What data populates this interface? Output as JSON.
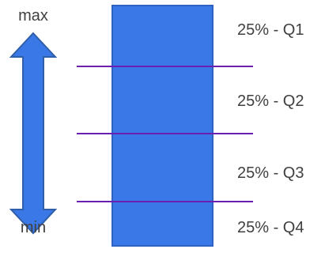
{
  "range_labels": {
    "top": "max",
    "bottom": "min"
  },
  "quartiles": [
    {
      "label": "25% - Q1"
    },
    {
      "label": "25% - Q2"
    },
    {
      "label": "25% - Q3"
    },
    {
      "label": "25% - Q4"
    }
  ],
  "colors": {
    "box_fill": "#3b78e7",
    "box_stroke": "#2f63c2",
    "arrow_fill": "#3b78e7",
    "arrow_stroke": "#2f5fa8",
    "divider": "#6a1fb0",
    "text": "#404040"
  },
  "icons": {
    "range_arrow": "double-headed-vertical-arrow"
  }
}
